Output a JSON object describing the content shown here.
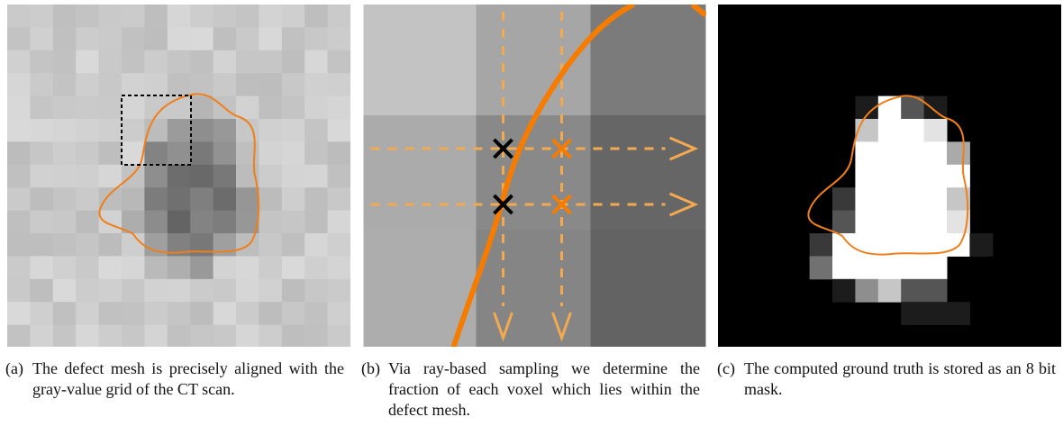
{
  "panels": [
    {
      "label": "(a)",
      "caption": "The defect mesh is precisely aligned with the gray-value grid of the CT scan."
    },
    {
      "label": "(b)",
      "caption": "Via ray-based sampling we determine the fraction of each voxel which lies within the defect mesh."
    },
    {
      "label": "(c)",
      "caption": "The computed ground truth is stored as an 8 bit mask."
    }
  ]
}
